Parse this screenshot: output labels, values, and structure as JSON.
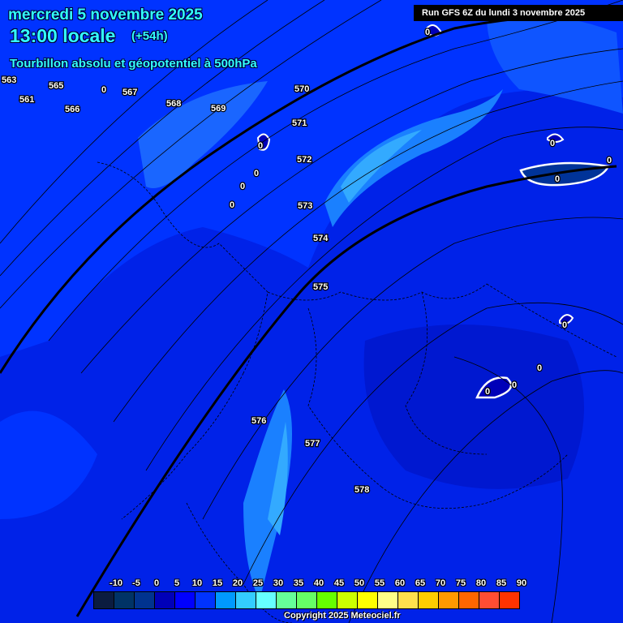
{
  "header": {
    "date": "mercredi 5 novembre 2025",
    "time": "13:00 locale",
    "lead": "(+54h)",
    "parameter": "Tourbillon absolu et géopotentiel à 500hPa",
    "run": "Run GFS 6Z du lundi 3 novembre 2025"
  },
  "contour_labels": [
    "563",
    "561",
    "565",
    "566",
    "567",
    "568",
    "569",
    "570",
    "571",
    "572",
    "573",
    "574",
    "575",
    "576",
    "577",
    "578"
  ],
  "vorticity_zero_label": "0",
  "legend": {
    "ticks": [
      "-10",
      "-5",
      "0",
      "5",
      "10",
      "15",
      "20",
      "25",
      "30",
      "35",
      "40",
      "45",
      "50",
      "55",
      "60",
      "65",
      "70",
      "75",
      "80",
      "85",
      "90"
    ],
    "colors": [
      "#0b1c40",
      "#003366",
      "#00338f",
      "#0000b8",
      "#0000ff",
      "#0033ff",
      "#0099ff",
      "#33ccff",
      "#66ffff",
      "#66ff99",
      "#66ff66",
      "#66ff00",
      "#ccff00",
      "#ffff00",
      "#ffff88",
      "#ffe04d",
      "#ffcc00",
      "#ff9900",
      "#ff6600",
      "#ff4d33",
      "#ff3300"
    ]
  },
  "copyright": "Copyright 2025 Meteociel.fr"
}
